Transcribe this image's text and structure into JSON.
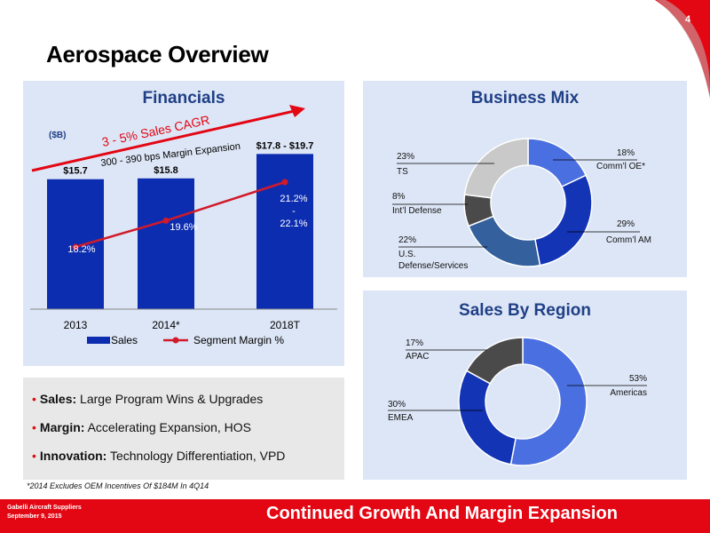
{
  "page": {
    "number": "4",
    "title": "Aerospace Overview",
    "footnote": "*2014 Excludes OEM Incentives Of $184M In 4Q14",
    "footer_left": [
      "Gabelli Aircraft Suppliers",
      "September 9, 2015"
    ],
    "footer_right": "Continued Growth And Margin Expansion",
    "colors": {
      "accent_red": "#e30613",
      "bar_blue": "#0d2db0",
      "panel_bg": "#dde6f6",
      "title_blue": "#1f3f86"
    }
  },
  "bullets": [
    {
      "bold": "Sales:",
      "text": " Large Program Wins & Upgrades"
    },
    {
      "bold": "Margin:",
      "text": " Accelerating Expansion, HOS"
    },
    {
      "bold": "Innovation:",
      "text": " Technology Differentiation, VPD"
    }
  ],
  "chart_data": [
    {
      "type": "bar",
      "title": "Financials",
      "unit_label": "($B)",
      "categories": [
        "2013",
        "2014*",
        "2018T"
      ],
      "series": [
        {
          "name": "Sales",
          "values": [
            15.7,
            15.8,
            18.75
          ],
          "labels": [
            "$15.7",
            "$15.8",
            "$17.8 - $19.7"
          ],
          "color": "#0d2db0"
        },
        {
          "name": "Segment Margin %",
          "values": [
            18.2,
            19.6,
            21.65
          ],
          "labels": [
            "18.2%",
            "19.6%",
            "21.2%\n-\n22.1%"
          ],
          "color": "#d11a2a",
          "kind": "line"
        }
      ],
      "annotation_1": "3 - 5% Sales CAGR",
      "annotation_2": "300 - 390 bps Margin Expansion",
      "legend": "bottom"
    },
    {
      "type": "pie",
      "title": "Business Mix",
      "slices": [
        {
          "label": "Comm’l OE*",
          "value": 18,
          "pct": "18%",
          "color": "#4a6fe0"
        },
        {
          "label": "Comm’l AM",
          "value": 29,
          "pct": "29%",
          "color": "#1234b5"
        },
        {
          "label": "U.S. Defense/Services",
          "value": 22,
          "pct": "22%",
          "color": "#34619d"
        },
        {
          "label": "Int’l Defense",
          "value": 8,
          "pct": "8%",
          "color": "#4a4a4a"
        },
        {
          "label": "TS",
          "value": 23,
          "pct": "23%",
          "color": "#c9c9c9"
        }
      ]
    },
    {
      "type": "pie",
      "title": "Sales By Region",
      "slices": [
        {
          "label": "Americas",
          "value": 53,
          "pct": "53%",
          "color": "#4a6fe0"
        },
        {
          "label": "EMEA",
          "value": 30,
          "pct": "30%",
          "color": "#1234b5"
        },
        {
          "label": "APAC",
          "value": 17,
          "pct": "17%",
          "color": "#4a4a4a"
        }
      ]
    }
  ]
}
